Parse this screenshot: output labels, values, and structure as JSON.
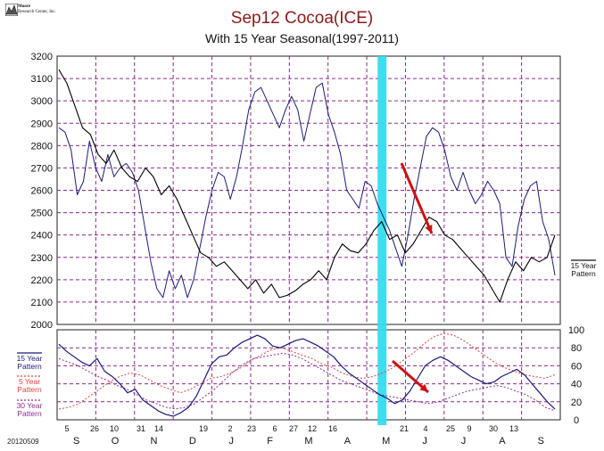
{
  "header": {
    "logo_line1": "Moore",
    "logo_line2": "Research Center, Inc.",
    "title": "Sep12 Cocoa(ICE)",
    "subtitle": "With 15 Year Seasonal(1997-2011)"
  },
  "footer": {
    "date_stamp": "20120509"
  },
  "colors": {
    "grid": "#8a2a8a",
    "price_line": "#000000",
    "seasonal_15": "#1a1a7a",
    "seasonal_5": "#e04040",
    "seasonal_30": "#8a2a8a",
    "highlight_band": "#33ddee",
    "arrow": "#cc1111"
  },
  "side_legends": {
    "top_15": "15 Year\nPattern",
    "bottom_15": "15 Year\nPattern",
    "bottom_5": "5 Year\nPattern",
    "bottom_30": "30 Year\nPattern"
  },
  "chart_data": [
    {
      "type": "line",
      "panel": "price",
      "ylim": [
        2000,
        3200
      ],
      "yticks": [
        2000,
        2100,
        2200,
        2300,
        2400,
        2500,
        2600,
        2700,
        2800,
        2900,
        3000,
        3100,
        3200
      ],
      "month_labels": [
        "S",
        "O",
        "N",
        "D",
        "J",
        "F",
        "M",
        "A",
        "M",
        "J",
        "J",
        "A",
        "S"
      ],
      "day_labels": [
        "5",
        "26",
        "10",
        "31",
        "14",
        "19",
        "2",
        "23",
        "6",
        "27",
        "12",
        "16",
        "21",
        "4",
        "25",
        "9",
        "30",
        "13"
      ],
      "grid": true,
      "highlight_band_month": "May",
      "series": [
        {
          "name": "Sep12 Cocoa",
          "values": [
            3140,
            3080,
            2980,
            2880,
            2850,
            2760,
            2720,
            2780,
            2700,
            2660,
            2640,
            2700,
            2660,
            2580,
            2620,
            2560,
            2480,
            2400,
            2320,
            2300,
            2260,
            2280,
            2240,
            2200,
            2160,
            2200,
            2140,
            2180,
            2120,
            2130,
            2150,
            2180,
            2200,
            2240,
            2200,
            2300,
            2360,
            2330,
            2320,
            2360,
            2420,
            2460,
            2380,
            2400,
            2320,
            2360,
            2420,
            2480,
            2460,
            2400,
            2380,
            2340,
            2300,
            2260,
            2220,
            2160,
            2100,
            2200,
            2280,
            2240,
            2300,
            2280,
            2300,
            2400
          ]
        },
        {
          "name": "15 Year Pattern",
          "values": [
            2880,
            2860,
            2780,
            2580,
            2640,
            2820,
            2700,
            2640,
            2760,
            2660,
            2700,
            2720,
            2680,
            2600,
            2440,
            2280,
            2160,
            2120,
            2240,
            2160,
            2220,
            2120,
            2200,
            2340,
            2480,
            2600,
            2680,
            2660,
            2560,
            2660,
            2800,
            2960,
            3040,
            3060,
            3000,
            2940,
            2880,
            2960,
            3020,
            2960,
            2820,
            2940,
            3060,
            3080,
            2940,
            2860,
            2760,
            2600,
            2560,
            2520,
            2640,
            2620,
            2540,
            2480,
            2420,
            2340,
            2260,
            2400,
            2560,
            2700,
            2840,
            2880,
            2860,
            2780,
            2660,
            2600,
            2680,
            2600,
            2540,
            2580,
            2640,
            2600,
            2540,
            2300,
            2260,
            2440,
            2560,
            2620,
            2640,
            2460,
            2380,
            2220
          ]
        }
      ]
    },
    {
      "type": "line",
      "panel": "seasonal",
      "ylim": [
        0,
        100
      ],
      "yticks": [
        0,
        20,
        40,
        60,
        80,
        100
      ],
      "grid": true,
      "series": [
        {
          "name": "15 Year Pattern",
          "values": [
            84,
            76,
            70,
            64,
            60,
            68,
            54,
            48,
            40,
            30,
            34,
            22,
            16,
            10,
            6,
            4,
            8,
            14,
            26,
            44,
            62,
            70,
            72,
            80,
            86,
            90,
            94,
            90,
            82,
            80,
            84,
            88,
            90,
            86,
            82,
            76,
            70,
            60,
            52,
            46,
            40,
            34,
            28,
            24,
            18,
            22,
            32,
            46,
            60,
            66,
            70,
            66,
            60,
            54,
            48,
            44,
            40,
            42,
            48,
            52,
            56,
            50,
            40,
            30,
            20,
            12
          ]
        },
        {
          "name": "5 Year Pattern",
          "values": [
            12,
            14,
            18,
            26,
            34,
            42,
            48,
            52,
            50,
            44,
            38,
            34,
            30,
            34,
            40,
            46,
            48,
            52,
            58,
            66,
            72,
            78,
            80,
            76,
            72,
            68,
            62,
            58,
            52,
            48,
            46,
            48,
            52,
            58,
            66,
            74,
            84,
            92,
            96,
            94,
            88,
            80,
            72,
            64,
            58,
            54,
            50,
            48,
            46,
            50
          ]
        },
        {
          "name": "30 Year Pattern",
          "values": [
            68,
            64,
            60,
            54,
            48,
            44,
            38,
            34,
            28,
            22,
            18,
            14,
            12,
            14,
            18,
            26,
            34,
            44,
            54,
            62,
            68,
            70,
            72,
            74,
            72,
            68,
            62,
            56,
            50,
            44,
            40,
            36,
            32,
            28,
            26,
            24,
            22,
            20,
            18,
            20,
            24,
            28,
            32,
            34,
            36,
            38,
            36,
            32,
            28,
            22,
            14,
            10
          ]
        }
      ]
    }
  ]
}
